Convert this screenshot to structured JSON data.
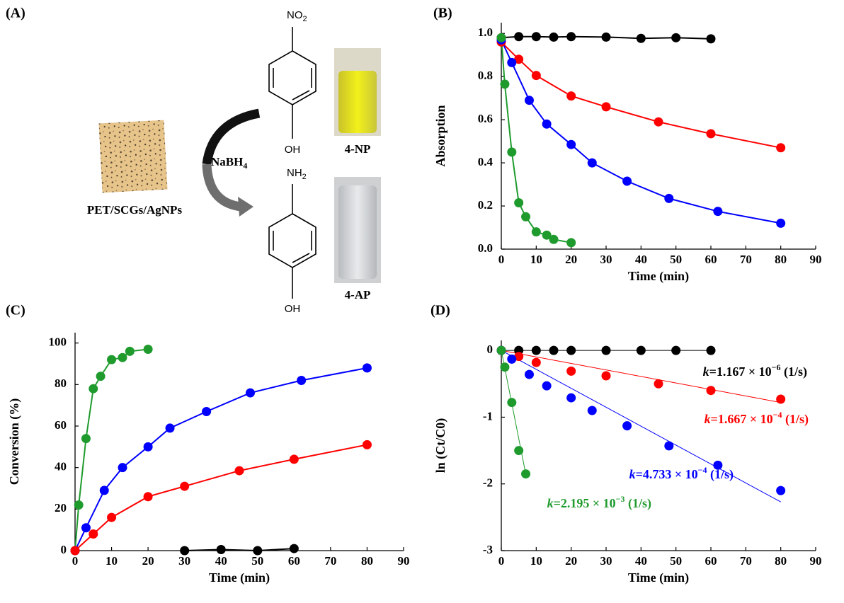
{
  "scheme": {
    "label": "(A)",
    "material": "PET/SCGs/AgNPs",
    "reagent": "NaBH",
    "reagent_sub": "4",
    "top_group": "NO",
    "top_group_sub": "2",
    "top_bottom_group": "OH",
    "bottom_group": "NH",
    "bottom_group_sub": "2",
    "bottom_bottom_group": "OH",
    "top_vial": "4-NP",
    "bottom_vial": "4-AP"
  },
  "chart_data": [
    {
      "type": "line",
      "panel_label": "(B)",
      "x_label": "Time (min)",
      "y_label": "Absorption",
      "xlim": [
        0,
        90
      ],
      "xticks": [
        0,
        10,
        20,
        30,
        40,
        50,
        60,
        70,
        80,
        90
      ],
      "ylim": [
        0,
        1.05
      ],
      "yticks": [
        {
          "value": 0,
          "label": "0.0"
        },
        0.2,
        0.4,
        0.6,
        0.8,
        {
          "value": 1,
          "label": "1.0"
        }
      ],
      "series": [
        {
          "color": "#000000",
          "x": [
            0,
            5,
            10,
            15,
            20,
            30,
            40,
            50,
            60
          ],
          "values": [
            0.98,
            0.985,
            0.985,
            0.983,
            0.985,
            0.983,
            0.977,
            0.98,
            0.975
          ]
        },
        {
          "color": "#ff0000",
          "x": [
            0,
            5,
            10,
            20,
            30,
            45,
            60,
            80
          ],
          "values": [
            0.96,
            0.88,
            0.805,
            0.71,
            0.66,
            0.59,
            0.535,
            0.47
          ]
        },
        {
          "color": "#0000ff",
          "x": [
            0,
            3,
            8,
            13,
            20,
            26,
            36,
            48,
            62,
            80
          ],
          "values": [
            0.97,
            0.865,
            0.69,
            0.58,
            0.485,
            0.4,
            0.315,
            0.235,
            0.175,
            0.12
          ]
        },
        {
          "color": "#1f9b2e",
          "x": [
            0,
            1,
            3,
            5,
            7,
            10,
            13,
            15,
            20
          ],
          "values": [
            0.98,
            0.765,
            0.45,
            0.215,
            0.15,
            0.08,
            0.065,
            0.045,
            0.03
          ]
        }
      ]
    },
    {
      "type": "line",
      "panel_label": "(C)",
      "x_label": "Time (min)",
      "y_label": "Conversion (%)",
      "xlim": [
        0,
        90
      ],
      "xticks": [
        0,
        10,
        20,
        30,
        40,
        50,
        60,
        70,
        80,
        90
      ],
      "ylim": [
        0,
        105
      ],
      "yticks": [
        0,
        20,
        40,
        60,
        80,
        100
      ],
      "series": [
        {
          "color": "#1f9b2e",
          "x": [
            0,
            1,
            3,
            5,
            7,
            10,
            13,
            15,
            20
          ],
          "values": [
            0,
            22,
            54,
            78,
            84,
            92,
            93,
            96,
            97
          ]
        },
        {
          "color": "#0000ff",
          "x": [
            0,
            3,
            8,
            13,
            20,
            26,
            36,
            48,
            62,
            80
          ],
          "values": [
            0,
            11,
            29,
            40,
            50,
            59,
            67,
            76,
            82,
            88
          ]
        },
        {
          "color": "#ff0000",
          "x": [
            0,
            5,
            10,
            20,
            30,
            45,
            60,
            80
          ],
          "values": [
            0,
            8,
            16,
            26,
            31,
            38.5,
            44,
            51
          ]
        },
        {
          "color": "#000000",
          "x": [
            30,
            40,
            50,
            60
          ],
          "values": [
            0,
            0.5,
            0,
            1
          ]
        }
      ]
    },
    {
      "type": "scatter",
      "panel_label": "(D)",
      "x_label": "Time (min)",
      "y_label": "ln (Ct/C0)",
      "xlim": [
        0,
        90
      ],
      "xticks": [
        0,
        10,
        20,
        30,
        40,
        50,
        60,
        70,
        80,
        90
      ],
      "ylim": [
        -3,
        0.15
      ],
      "yticks": [
        -3,
        -2,
        -1,
        0
      ],
      "series": [
        {
          "color": "#000000",
          "x": [
            0,
            5,
            10,
            15,
            20,
            30,
            40,
            50,
            60
          ],
          "values": [
            0,
            0,
            0,
            0,
            0,
            0,
            0,
            0,
            0
          ],
          "fit": {
            "x": [
              0,
              60
            ],
            "values": [
              0,
              0
            ]
          },
          "annotation": {
            "symbol": "k",
            "body": "=1.167 × 10",
            "exponent": "−6",
            "unit": " (1/s)"
          }
        },
        {
          "color": "#ff0000",
          "x": [
            0,
            5,
            10,
            20,
            30,
            45,
            60,
            80
          ],
          "values": [
            0,
            -0.09,
            -0.18,
            -0.31,
            -0.38,
            -0.5,
            -0.6,
            -0.73
          ],
          "fit": {
            "x": [
              0,
              80
            ],
            "values": [
              0,
              -0.78
            ]
          },
          "annotation": {
            "symbol": "k",
            "body": "=1.667 × 10",
            "exponent": "−4",
            "unit": " (1/s)"
          }
        },
        {
          "color": "#0000ff",
          "x": [
            0,
            3,
            8,
            13,
            20,
            26,
            36,
            48,
            62,
            80
          ],
          "values": [
            0,
            -0.13,
            -0.36,
            -0.53,
            -0.71,
            -0.9,
            -1.13,
            -1.43,
            -1.72,
            -2.1
          ],
          "fit": {
            "x": [
              0,
              80
            ],
            "values": [
              0,
              -2.27
            ]
          },
          "annotation": {
            "symbol": "k",
            "body": "=4.733 × 10",
            "exponent": "−4",
            "unit": " (1/s)"
          }
        },
        {
          "color": "#1f9b2e",
          "x": [
            0,
            1,
            3,
            5,
            7
          ],
          "values": [
            0,
            -0.25,
            -0.78,
            -1.5,
            -1.85
          ],
          "fit": {
            "x": [
              0,
              7
            ],
            "values": [
              0,
              -1.85
            ]
          },
          "annotation": {
            "symbol": "k",
            "body": "=2.195 × 10",
            "exponent": "−3",
            "unit": " (1/s)"
          }
        }
      ]
    }
  ]
}
